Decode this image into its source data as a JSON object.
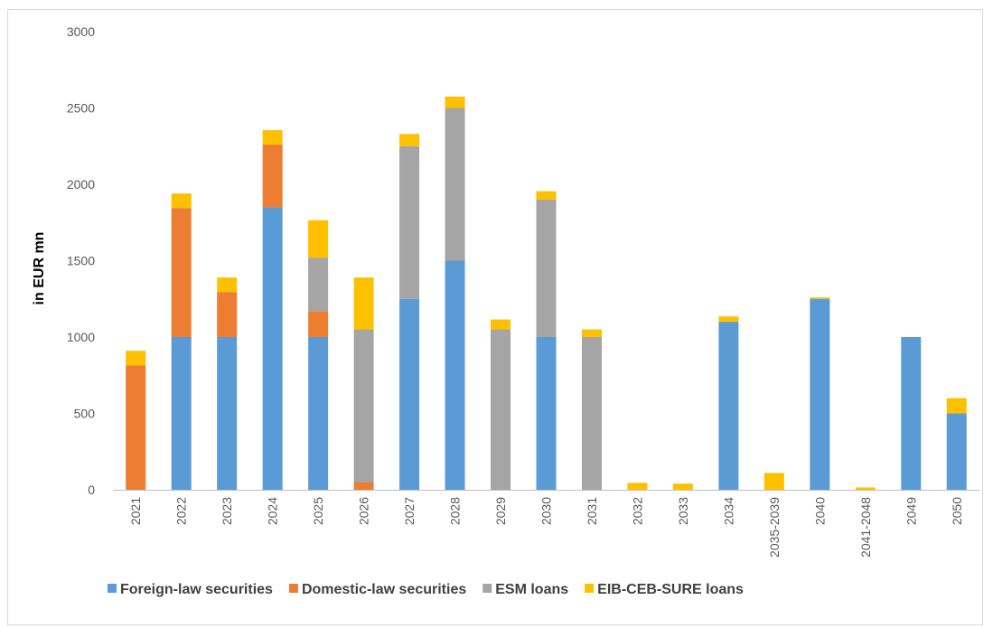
{
  "chart_data": {
    "type": "bar",
    "stacked": true,
    "title": "",
    "xlabel": "",
    "ylabel": "in EUR mn",
    "ylim": [
      0,
      3000
    ],
    "yticks": [
      0,
      500,
      1000,
      1500,
      2000,
      2500,
      3000
    ],
    "grid": false,
    "legend_position": "bottom",
    "categories": [
      "2021",
      "2022",
      "2023",
      "2024",
      "2025",
      "2026",
      "2027",
      "2028",
      "2029",
      "2030",
      "2031",
      "2032",
      "2033",
      "2034",
      "2035-2039",
      "2040",
      "2041-2048",
      "2049",
      "2050"
    ],
    "series": [
      {
        "name": "Foreign-law securities",
        "color": "#5b9bd5",
        "values": [
          0,
          1000,
          1000,
          1850,
          1000,
          0,
          1250,
          1500,
          0,
          1000,
          0,
          0,
          0,
          1100,
          0,
          1250,
          0,
          1000,
          500
        ]
      },
      {
        "name": "Domestic-law securities",
        "color": "#ed7d31",
        "values": [
          815,
          845,
          295,
          410,
          170,
          50,
          0,
          0,
          0,
          0,
          0,
          0,
          0,
          0,
          0,
          0,
          0,
          0,
          0
        ]
      },
      {
        "name": "ESM loans",
        "color": "#a5a5a5",
        "values": [
          0,
          0,
          0,
          0,
          350,
          1000,
          1000,
          1000,
          1050,
          900,
          1000,
          0,
          0,
          0,
          0,
          0,
          0,
          0,
          0
        ]
      },
      {
        "name": "EIB-CEB-SURE loans",
        "color": "#ffc000",
        "values": [
          95,
          95,
          95,
          95,
          245,
          340,
          80,
          75,
          65,
          55,
          50,
          45,
          40,
          35,
          110,
          10,
          15,
          0,
          100
        ]
      }
    ]
  }
}
